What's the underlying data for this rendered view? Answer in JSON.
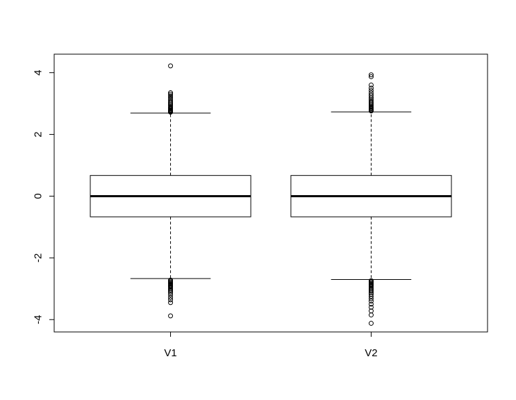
{
  "chart_data": {
    "type": "box",
    "categories": [
      "V1",
      "V2"
    ],
    "ylim": [
      -4.4,
      4.6
    ],
    "y_ticks": [
      -4,
      -2,
      0,
      2,
      4
    ],
    "y_tick_labels": [
      "-4",
      "-2",
      "0",
      "2",
      "4"
    ],
    "grid": false,
    "legend": "none",
    "title": "",
    "xlabel": "",
    "ylabel": "",
    "colors": {
      "stroke": "#000000",
      "background": "#ffffff"
    },
    "series": [
      {
        "category": "V1",
        "whisker_low": -2.67,
        "q1": -0.67,
        "median": 0.0,
        "q3": 0.67,
        "whisker_high": 2.69,
        "outliers_high": [
          2.72,
          2.74,
          2.76,
          2.78,
          2.8,
          2.83,
          2.86,
          2.89,
          2.93,
          2.97,
          3.01,
          3.05,
          3.1,
          3.15,
          3.2,
          3.25,
          3.3,
          3.35,
          4.22
        ],
        "outliers_low": [
          -2.72,
          -2.75,
          -2.78,
          -2.81,
          -2.84,
          -2.87,
          -2.9,
          -2.93,
          -2.96,
          -3.0,
          -3.04,
          -3.08,
          -3.13,
          -3.2,
          -3.28,
          -3.36,
          -3.45,
          -3.88
        ]
      },
      {
        "category": "V2",
        "whisker_low": -2.7,
        "q1": -0.67,
        "median": 0.0,
        "q3": 0.67,
        "whisker_high": 2.73,
        "outliers_high": [
          2.76,
          2.78,
          2.8,
          2.83,
          2.86,
          2.89,
          2.93,
          2.97,
          3.01,
          3.05,
          3.1,
          3.15,
          3.2,
          3.27,
          3.34,
          3.42,
          3.5,
          3.6,
          3.87,
          3.93
        ],
        "outliers_low": [
          -2.74,
          -2.77,
          -2.8,
          -2.83,
          -2.86,
          -2.89,
          -2.92,
          -2.96,
          -3.0,
          -3.04,
          -3.08,
          -3.13,
          -3.18,
          -3.25,
          -3.32,
          -3.4,
          -3.5,
          -3.6,
          -3.72,
          -3.85,
          -4.12
        ]
      }
    ]
  }
}
